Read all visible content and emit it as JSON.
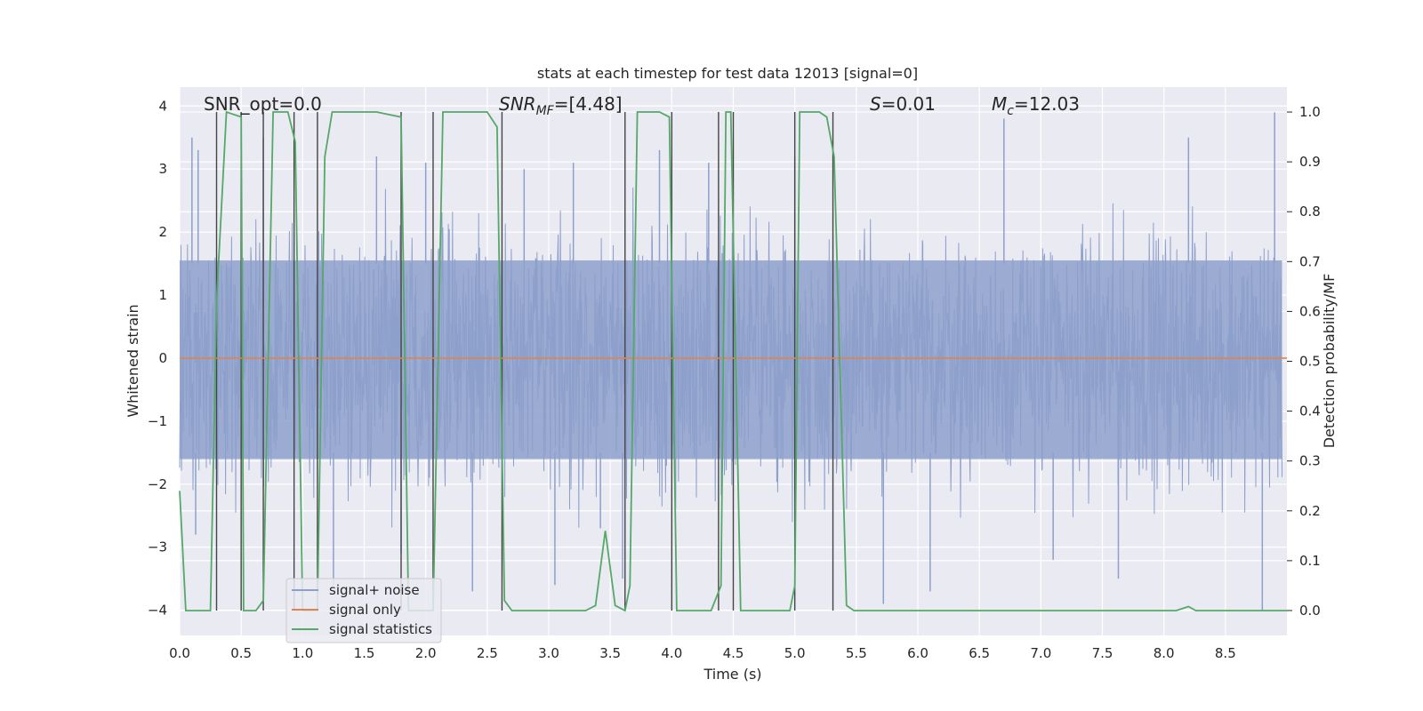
{
  "chart_data": {
    "type": "line",
    "title": "stats at each timestep for test data 12013 [signal=0]",
    "xlabel": "Time (s)",
    "ylabel": "Whitened strain",
    "y2label": "Detection probability/MF",
    "xlim": [
      0.0,
      9.0
    ],
    "ylim": [
      -4.4,
      4.3
    ],
    "y2lim": [
      -0.05,
      1.05
    ],
    "grid": true,
    "x_ticks": [
      0.0,
      0.5,
      1.0,
      1.5,
      2.0,
      2.5,
      3.0,
      3.5,
      4.0,
      4.5,
      5.0,
      5.5,
      6.0,
      6.5,
      7.0,
      7.5,
      8.0,
      8.5
    ],
    "y_ticks": [
      -4,
      -3,
      -2,
      -1,
      0,
      1,
      2,
      3,
      4
    ],
    "y2_ticks": [
      0.0,
      0.1,
      0.2,
      0.3,
      0.4,
      0.5,
      0.6,
      0.7,
      0.8,
      0.9,
      1.0
    ],
    "x_tick_labels": [
      "0.0",
      "0.5",
      "1.0",
      "1.5",
      "2.0",
      "2.5",
      "3.0",
      "3.5",
      "4.0",
      "4.5",
      "5.0",
      "5.5",
      "6.0",
      "6.5",
      "7.0",
      "7.5",
      "8.0",
      "8.5"
    ],
    "y_tick_labels": [
      "−4",
      "−3",
      "−2",
      "−1",
      "0",
      "1",
      "2",
      "3",
      "4"
    ],
    "y2_tick_labels": [
      "0.0",
      "0.1",
      "0.2",
      "0.3",
      "0.4",
      "0.5",
      "0.6",
      "0.7",
      "0.8",
      "0.9",
      "1.0"
    ],
    "legend_position": "lower-left",
    "colors": {
      "noise": "#8da0cb",
      "signal": "#dd8452",
      "statistics": "#55a868",
      "markers": "#444444",
      "plot_background": "#eaeaf2",
      "grid": "#ffffff"
    },
    "series": [
      {
        "name": "signal+ noise",
        "axis": "left",
        "kind": "noise-band",
        "core_band": [
          -1.6,
          1.55
        ],
        "typical_range": [
          -2.5,
          2.5
        ],
        "peaks": [
          {
            "x": 0.1,
            "y": 3.5
          },
          {
            "x": 0.15,
            "y": 3.3
          },
          {
            "x": 0.5,
            "y": 3.6
          },
          {
            "x": 0.68,
            "y": 3.5
          },
          {
            "x": 1.6,
            "y": 3.2
          },
          {
            "x": 2.0,
            "y": 3.1
          },
          {
            "x": 2.8,
            "y": 3.0
          },
          {
            "x": 3.2,
            "y": 3.1
          },
          {
            "x": 3.9,
            "y": 3.3
          },
          {
            "x": 4.3,
            "y": 3.1
          },
          {
            "x": 5.0,
            "y": 3.2
          },
          {
            "x": 6.7,
            "y": 3.8
          },
          {
            "x": 8.2,
            "y": 3.5
          },
          {
            "x": 8.9,
            "y": 3.9
          }
        ],
        "troughs": [
          {
            "x": 0.13,
            "y": -2.8
          },
          {
            "x": 1.25,
            "y": -3.6
          },
          {
            "x": 1.8,
            "y": -3.1
          },
          {
            "x": 2.38,
            "y": -3.7
          },
          {
            "x": 3.05,
            "y": -3.6
          },
          {
            "x": 3.42,
            "y": -2.7
          },
          {
            "x": 3.6,
            "y": -3.5
          },
          {
            "x": 5.72,
            "y": -3.9
          },
          {
            "x": 6.1,
            "y": -3.7
          },
          {
            "x": 7.1,
            "y": -3.2
          },
          {
            "x": 7.63,
            "y": -3.5
          },
          {
            "x": 8.8,
            "y": -4.0
          }
        ]
      },
      {
        "name": "signal only",
        "axis": "left",
        "x": [
          0.0,
          9.0
        ],
        "y": [
          0.0,
          0.0
        ]
      },
      {
        "name": "signal statistics",
        "axis": "right",
        "x": [
          0.0,
          0.05,
          0.25,
          0.3,
          0.38,
          0.5,
          0.52,
          0.56,
          0.62,
          0.68,
          0.76,
          0.88,
          0.94,
          1.0,
          1.06,
          1.12,
          1.18,
          1.24,
          1.4,
          1.6,
          1.8,
          1.86,
          1.92,
          2.0,
          2.06,
          2.14,
          2.3,
          2.5,
          2.58,
          2.64,
          2.7,
          3.0,
          3.3,
          3.38,
          3.46,
          3.54,
          3.62,
          3.66,
          3.72,
          3.9,
          3.98,
          4.04,
          4.12,
          4.32,
          4.4,
          4.44,
          4.48,
          4.56,
          4.96,
          5.0,
          5.04,
          5.2,
          5.26,
          5.32,
          5.42,
          5.48,
          5.6,
          8.1,
          8.2,
          8.26,
          9.0
        ],
        "y": [
          0.24,
          0.0,
          0.0,
          0.62,
          1.0,
          0.99,
          0.0,
          0.0,
          0.0,
          0.02,
          1.0,
          1.0,
          0.94,
          0.0,
          0.0,
          0.0,
          0.91,
          1.0,
          1.0,
          1.0,
          0.99,
          0.0,
          0.0,
          0.0,
          0.0,
          1.0,
          1.0,
          1.0,
          0.97,
          0.02,
          0.0,
          0.0,
          0.0,
          0.01,
          0.16,
          0.01,
          0.0,
          0.05,
          1.0,
          1.0,
          0.99,
          0.0,
          0.0,
          0.0,
          0.05,
          1.0,
          1.0,
          0.0,
          0.0,
          0.05,
          1.0,
          1.0,
          0.99,
          0.91,
          0.01,
          0.0,
          0.0,
          0.0,
          0.008,
          0.0,
          0.0
        ]
      }
    ],
    "event_markers_x": [
      0.3,
      0.5,
      0.68,
      0.93,
      1.12,
      1.8,
      2.06,
      2.62,
      3.62,
      4.0,
      4.38,
      4.5,
      5.0,
      5.31
    ],
    "annotations": [
      {
        "id": "snr-opt",
        "text": "SNR_opt=0.0",
        "x": 0.2,
        "y": 4.0
      },
      {
        "id": "snr-mf",
        "main": "SNR",
        "sub": "MF",
        "rest": "=[4.48]",
        "x": 2.6,
        "y": 4.0
      },
      {
        "id": "s-stat",
        "main": "S",
        "rest": "=0.01",
        "x": 5.6,
        "y": 4.0
      },
      {
        "id": "chirp-mass",
        "main": "M",
        "sub": "c",
        "rest": "=12.03",
        "x": 6.6,
        "y": 4.0
      }
    ]
  }
}
